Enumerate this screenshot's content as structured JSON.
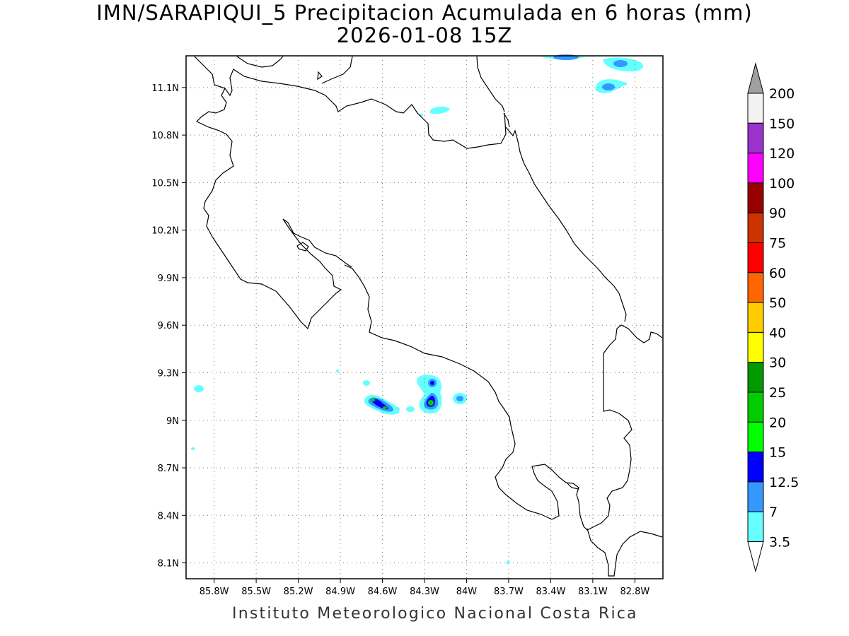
{
  "title_line1": "IMN/SARAPIQUI_5 Precipitacion Acumulada en 6 horas (mm)",
  "title_line2": "2026-01-08 15Z",
  "footer": "Instituto Meteorologico Nacional Costa Rica",
  "lon_labels": [
    "85.8W",
    "85.5W",
    "85.2W",
    "84.9W",
    "84.6W",
    "84.3W",
    "84W",
    "83.7W",
    "83.4W",
    "83.1W",
    "82.8W"
  ],
  "lat_labels": [
    "11.1N",
    "10.8N",
    "10.5N",
    "10.2N",
    "9.9N",
    "9.6N",
    "9.3N",
    "9N",
    "8.7N",
    "8.4N",
    "8.1N"
  ],
  "colorbar": {
    "labels": [
      "200",
      "150",
      "120",
      "100",
      "90",
      "75",
      "60",
      "50",
      "40",
      "30",
      "25",
      "20",
      "15",
      "12.5",
      "7",
      "3.5"
    ],
    "colors": [
      "#f2f2f2",
      "#9933cc",
      "#ff00ff",
      "#990000",
      "#cc3300",
      "#ff0000",
      "#ff6600",
      "#ffcc00",
      "#ffff00",
      "#009900",
      "#00cc00",
      "#00ff00",
      "#0000ff",
      "#3399ff",
      "#66ffff"
    ],
    "top_triangle_color": "#a0a0a0",
    "bottom_triangle_color": "#ffffff"
  },
  "map_extent": {
    "lon_min": -86.0,
    "lon_max": -82.6,
    "lat_min": 8.0,
    "lat_max": 11.3
  }
}
